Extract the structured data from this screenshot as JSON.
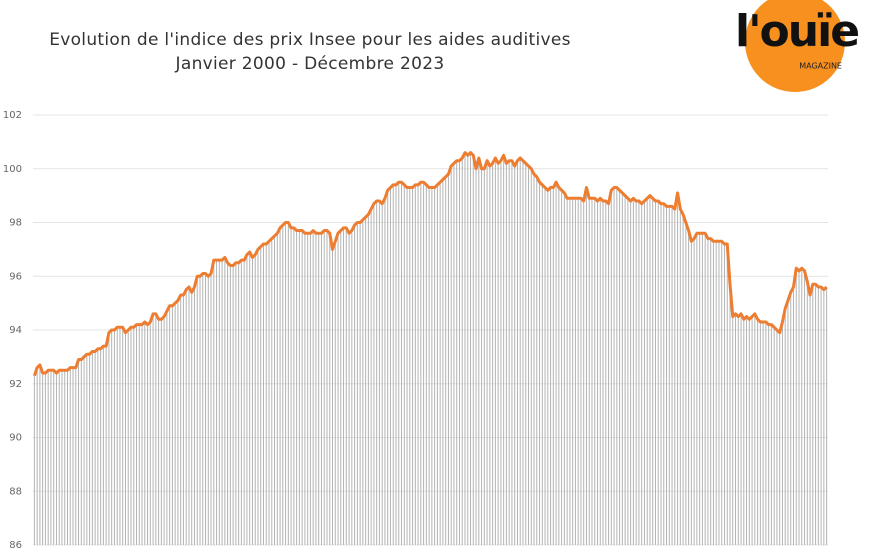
{
  "chart_data": {
    "type": "line",
    "title": "Evolution de l'indice des prix Insee pour les aides auditives",
    "subtitle": "Janvier 2000 - Décembre 2023",
    "logo": {
      "name": "l'ouïe",
      "tagline": "MAGAZINE",
      "color": "#f7901e"
    },
    "color": "#ed7d31",
    "bar_color": "#b3b3b3",
    "ylim": [
      86,
      102
    ],
    "yticks": [
      86,
      88,
      90,
      92,
      94,
      96,
      98,
      100,
      102
    ],
    "grid": true,
    "values": [
      92.3,
      92.6,
      92.7,
      92.4,
      92.4,
      92.5,
      92.5,
      92.5,
      92.4,
      92.5,
      92.5,
      92.5,
      92.5,
      92.6,
      92.6,
      92.6,
      92.9,
      92.9,
      93.0,
      93.1,
      93.1,
      93.2,
      93.2,
      93.3,
      93.3,
      93.4,
      93.4,
      93.9,
      94.0,
      94.0,
      94.1,
      94.1,
      94.1,
      93.9,
      94.0,
      94.1,
      94.1,
      94.2,
      94.2,
      94.2,
      94.3,
      94.2,
      94.3,
      94.6,
      94.6,
      94.4,
      94.4,
      94.5,
      94.7,
      94.9,
      94.9,
      95.0,
      95.1,
      95.3,
      95.3,
      95.5,
      95.6,
      95.4,
      95.6,
      96.0,
      96.0,
      96.1,
      96.1,
      96.0,
      96.1,
      96.6,
      96.6,
      96.6,
      96.6,
      96.7,
      96.5,
      96.4,
      96.4,
      96.5,
      96.5,
      96.6,
      96.6,
      96.8,
      96.9,
      96.7,
      96.8,
      97.0,
      97.1,
      97.2,
      97.2,
      97.3,
      97.4,
      97.5,
      97.6,
      97.8,
      97.9,
      98.0,
      98.0,
      97.8,
      97.8,
      97.7,
      97.7,
      97.7,
      97.6,
      97.6,
      97.6,
      97.7,
      97.6,
      97.6,
      97.6,
      97.7,
      97.7,
      97.6,
      97.0,
      97.3,
      97.6,
      97.7,
      97.8,
      97.8,
      97.6,
      97.7,
      97.9,
      98.0,
      98.0,
      98.1,
      98.2,
      98.3,
      98.5,
      98.7,
      98.8,
      98.8,
      98.7,
      98.9,
      99.2,
      99.3,
      99.4,
      99.4,
      99.5,
      99.5,
      99.4,
      99.3,
      99.3,
      99.3,
      99.4,
      99.4,
      99.5,
      99.5,
      99.4,
      99.3,
      99.3,
      99.3,
      99.4,
      99.5,
      99.6,
      99.7,
      99.8,
      100.1,
      100.2,
      100.3,
      100.3,
      100.4,
      100.6,
      100.5,
      100.6,
      100.5,
      100.0,
      100.4,
      100.0,
      100.0,
      100.3,
      100.1,
      100.2,
      100.4,
      100.2,
      100.3,
      100.5,
      100.2,
      100.3,
      100.3,
      100.1,
      100.3,
      100.4,
      100.3,
      100.2,
      100.1,
      100.0,
      99.8,
      99.7,
      99.5,
      99.4,
      99.3,
      99.2,
      99.3,
      99.3,
      99.5,
      99.3,
      99.2,
      99.1,
      98.9,
      98.9,
      98.9,
      98.9,
      98.9,
      98.9,
      98.8,
      99.3,
      98.9,
      98.9,
      98.9,
      98.8,
      98.9,
      98.8,
      98.8,
      98.7,
      99.2,
      99.3,
      99.3,
      99.2,
      99.1,
      99.0,
      98.9,
      98.8,
      98.9,
      98.8,
      98.8,
      98.7,
      98.8,
      98.9,
      99.0,
      98.9,
      98.8,
      98.8,
      98.7,
      98.7,
      98.6,
      98.6,
      98.6,
      98.5,
      99.1,
      98.5,
      98.3,
      98.0,
      97.7,
      97.3,
      97.4,
      97.6,
      97.6,
      97.6,
      97.6,
      97.4,
      97.4,
      97.3,
      97.3,
      97.3,
      97.3,
      97.2,
      97.2,
      95.7,
      94.5,
      94.6,
      94.5,
      94.6,
      94.4,
      94.5,
      94.4,
      94.5,
      94.6,
      94.4,
      94.3,
      94.3,
      94.3,
      94.2,
      94.2,
      94.1,
      94.0,
      93.9,
      94.3,
      94.8,
      95.1,
      95.4,
      95.6,
      96.3,
      96.2,
      96.3,
      96.2,
      95.8,
      95.3,
      95.7,
      95.7,
      95.6,
      95.6,
      95.5,
      95.6
    ]
  }
}
